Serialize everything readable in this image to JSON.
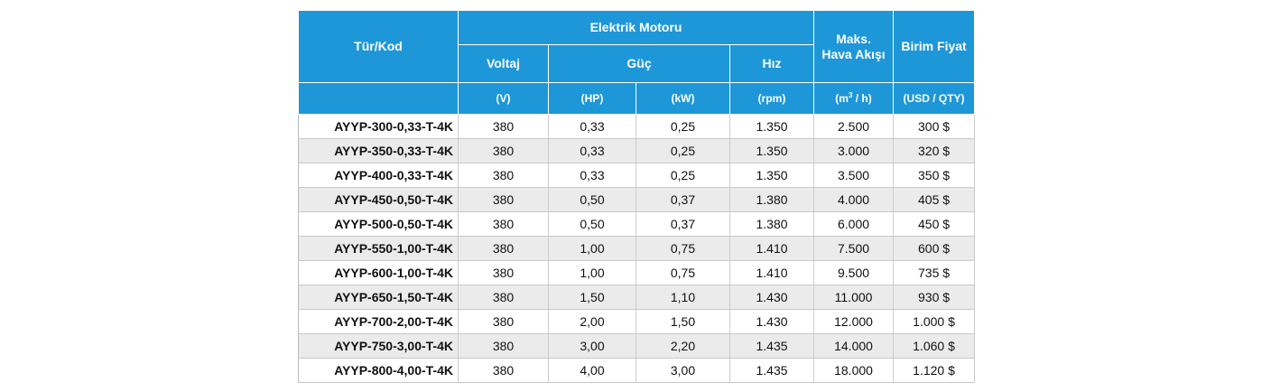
{
  "headers": {
    "type_code": "Tür/Kod",
    "electric_motor": "Elektrik Motoru",
    "voltage": "Voltaj",
    "power": "Güç",
    "speed": "Hız",
    "max_air_flow": "Maks. Hava Akışı",
    "unit_price": "Birim Fiyat"
  },
  "units": {
    "voltage": "(V)",
    "power_hp": "(HP)",
    "power_kw": "(kW)",
    "speed": "(rpm)",
    "air_flow_pre": "(m",
    "air_flow_sup": "3",
    "air_flow_post": " / h)",
    "price": "(USD / QTY)"
  },
  "rows": [
    [
      "AYYP-300-0,33-T-4K",
      "380",
      "0,33",
      "0,25",
      "1.350",
      "2.500",
      "300 $"
    ],
    [
      "AYYP-350-0,33-T-4K",
      "380",
      "0,33",
      "0,25",
      "1.350",
      "3.000",
      "320 $"
    ],
    [
      "AYYP-400-0,33-T-4K",
      "380",
      "0,33",
      "0,25",
      "1.350",
      "3.500",
      "350 $"
    ],
    [
      "AYYP-450-0,50-T-4K",
      "380",
      "0,50",
      "0,37",
      "1.380",
      "4.000",
      "405 $"
    ],
    [
      "AYYP-500-0,50-T-4K",
      "380",
      "0,50",
      "0,37",
      "1.380",
      "6.000",
      "450 $"
    ],
    [
      "AYYP-550-1,00-T-4K",
      "380",
      "1,00",
      "0,75",
      "1.410",
      "7.500",
      "600 $"
    ],
    [
      "AYYP-600-1,00-T-4K",
      "380",
      "1,00",
      "0,75",
      "1.410",
      "9.500",
      "735 $"
    ],
    [
      "AYYP-650-1,50-T-4K",
      "380",
      "1,50",
      "1,10",
      "1.430",
      "11.000",
      "930 $"
    ],
    [
      "AYYP-700-2,00-T-4K",
      "380",
      "2,00",
      "1,50",
      "1.430",
      "12.000",
      "1.000 $"
    ],
    [
      "AYYP-750-3,00-T-4K",
      "380",
      "3,00",
      "2,20",
      "1.435",
      "14.000",
      "1.060 $"
    ],
    [
      "AYYP-800-4,00-T-4K",
      "380",
      "4,00",
      "3,00",
      "1.435",
      "18.000",
      "1.120 $"
    ]
  ],
  "colors": {
    "header_bg": "#1e97d9",
    "header_text": "#ffffff",
    "stripe_bg": "#ebebeb"
  }
}
